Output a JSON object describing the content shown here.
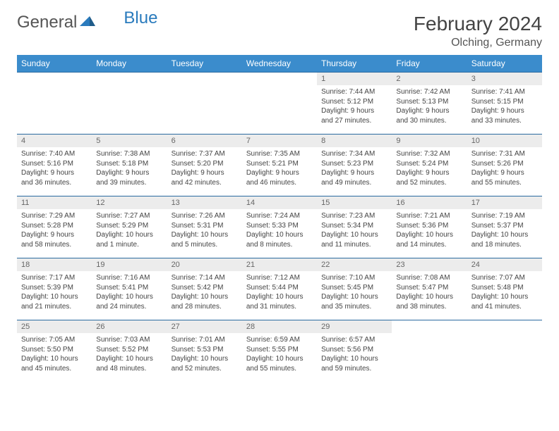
{
  "logo": {
    "text1": "General",
    "text2": "Blue"
  },
  "title": "February 2024",
  "location": "Olching, Germany",
  "colors": {
    "header_bg": "#3b8ccc",
    "daynum_bg": "#ececec",
    "row_border": "#2a6aa0",
    "text": "#444444",
    "logo_gray": "#555555",
    "logo_blue": "#2a7bbd"
  },
  "weekdays": [
    "Sunday",
    "Monday",
    "Tuesday",
    "Wednesday",
    "Thursday",
    "Friday",
    "Saturday"
  ],
  "weeks": [
    [
      null,
      null,
      null,
      null,
      {
        "n": "1",
        "sr": "Sunrise: 7:44 AM",
        "ss": "Sunset: 5:12 PM",
        "d1": "Daylight: 9 hours",
        "d2": "and 27 minutes."
      },
      {
        "n": "2",
        "sr": "Sunrise: 7:42 AM",
        "ss": "Sunset: 5:13 PM",
        "d1": "Daylight: 9 hours",
        "d2": "and 30 minutes."
      },
      {
        "n": "3",
        "sr": "Sunrise: 7:41 AM",
        "ss": "Sunset: 5:15 PM",
        "d1": "Daylight: 9 hours",
        "d2": "and 33 minutes."
      }
    ],
    [
      {
        "n": "4",
        "sr": "Sunrise: 7:40 AM",
        "ss": "Sunset: 5:16 PM",
        "d1": "Daylight: 9 hours",
        "d2": "and 36 minutes."
      },
      {
        "n": "5",
        "sr": "Sunrise: 7:38 AM",
        "ss": "Sunset: 5:18 PM",
        "d1": "Daylight: 9 hours",
        "d2": "and 39 minutes."
      },
      {
        "n": "6",
        "sr": "Sunrise: 7:37 AM",
        "ss": "Sunset: 5:20 PM",
        "d1": "Daylight: 9 hours",
        "d2": "and 42 minutes."
      },
      {
        "n": "7",
        "sr": "Sunrise: 7:35 AM",
        "ss": "Sunset: 5:21 PM",
        "d1": "Daylight: 9 hours",
        "d2": "and 46 minutes."
      },
      {
        "n": "8",
        "sr": "Sunrise: 7:34 AM",
        "ss": "Sunset: 5:23 PM",
        "d1": "Daylight: 9 hours",
        "d2": "and 49 minutes."
      },
      {
        "n": "9",
        "sr": "Sunrise: 7:32 AM",
        "ss": "Sunset: 5:24 PM",
        "d1": "Daylight: 9 hours",
        "d2": "and 52 minutes."
      },
      {
        "n": "10",
        "sr": "Sunrise: 7:31 AM",
        "ss": "Sunset: 5:26 PM",
        "d1": "Daylight: 9 hours",
        "d2": "and 55 minutes."
      }
    ],
    [
      {
        "n": "11",
        "sr": "Sunrise: 7:29 AM",
        "ss": "Sunset: 5:28 PM",
        "d1": "Daylight: 9 hours",
        "d2": "and 58 minutes."
      },
      {
        "n": "12",
        "sr": "Sunrise: 7:27 AM",
        "ss": "Sunset: 5:29 PM",
        "d1": "Daylight: 10 hours",
        "d2": "and 1 minute."
      },
      {
        "n": "13",
        "sr": "Sunrise: 7:26 AM",
        "ss": "Sunset: 5:31 PM",
        "d1": "Daylight: 10 hours",
        "d2": "and 5 minutes."
      },
      {
        "n": "14",
        "sr": "Sunrise: 7:24 AM",
        "ss": "Sunset: 5:33 PM",
        "d1": "Daylight: 10 hours",
        "d2": "and 8 minutes."
      },
      {
        "n": "15",
        "sr": "Sunrise: 7:23 AM",
        "ss": "Sunset: 5:34 PM",
        "d1": "Daylight: 10 hours",
        "d2": "and 11 minutes."
      },
      {
        "n": "16",
        "sr": "Sunrise: 7:21 AM",
        "ss": "Sunset: 5:36 PM",
        "d1": "Daylight: 10 hours",
        "d2": "and 14 minutes."
      },
      {
        "n": "17",
        "sr": "Sunrise: 7:19 AM",
        "ss": "Sunset: 5:37 PM",
        "d1": "Daylight: 10 hours",
        "d2": "and 18 minutes."
      }
    ],
    [
      {
        "n": "18",
        "sr": "Sunrise: 7:17 AM",
        "ss": "Sunset: 5:39 PM",
        "d1": "Daylight: 10 hours",
        "d2": "and 21 minutes."
      },
      {
        "n": "19",
        "sr": "Sunrise: 7:16 AM",
        "ss": "Sunset: 5:41 PM",
        "d1": "Daylight: 10 hours",
        "d2": "and 24 minutes."
      },
      {
        "n": "20",
        "sr": "Sunrise: 7:14 AM",
        "ss": "Sunset: 5:42 PM",
        "d1": "Daylight: 10 hours",
        "d2": "and 28 minutes."
      },
      {
        "n": "21",
        "sr": "Sunrise: 7:12 AM",
        "ss": "Sunset: 5:44 PM",
        "d1": "Daylight: 10 hours",
        "d2": "and 31 minutes."
      },
      {
        "n": "22",
        "sr": "Sunrise: 7:10 AM",
        "ss": "Sunset: 5:45 PM",
        "d1": "Daylight: 10 hours",
        "d2": "and 35 minutes."
      },
      {
        "n": "23",
        "sr": "Sunrise: 7:08 AM",
        "ss": "Sunset: 5:47 PM",
        "d1": "Daylight: 10 hours",
        "d2": "and 38 minutes."
      },
      {
        "n": "24",
        "sr": "Sunrise: 7:07 AM",
        "ss": "Sunset: 5:48 PM",
        "d1": "Daylight: 10 hours",
        "d2": "and 41 minutes."
      }
    ],
    [
      {
        "n": "25",
        "sr": "Sunrise: 7:05 AM",
        "ss": "Sunset: 5:50 PM",
        "d1": "Daylight: 10 hours",
        "d2": "and 45 minutes."
      },
      {
        "n": "26",
        "sr": "Sunrise: 7:03 AM",
        "ss": "Sunset: 5:52 PM",
        "d1": "Daylight: 10 hours",
        "d2": "and 48 minutes."
      },
      {
        "n": "27",
        "sr": "Sunrise: 7:01 AM",
        "ss": "Sunset: 5:53 PM",
        "d1": "Daylight: 10 hours",
        "d2": "and 52 minutes."
      },
      {
        "n": "28",
        "sr": "Sunrise: 6:59 AM",
        "ss": "Sunset: 5:55 PM",
        "d1": "Daylight: 10 hours",
        "d2": "and 55 minutes."
      },
      {
        "n": "29",
        "sr": "Sunrise: 6:57 AM",
        "ss": "Sunset: 5:56 PM",
        "d1": "Daylight: 10 hours",
        "d2": "and 59 minutes."
      },
      null,
      null
    ]
  ]
}
